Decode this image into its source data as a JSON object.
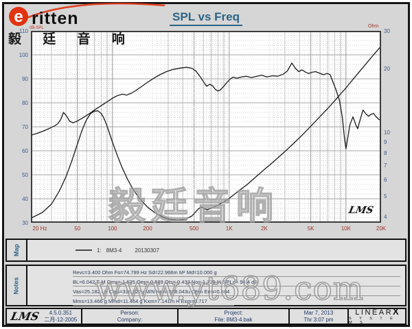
{
  "header": {
    "logo_word": "ritten",
    "logo_cn": "毅 廷 音 响",
    "title": "SPL vs Freq"
  },
  "chart_data": {
    "type": "line",
    "title": "SPL vs Freq",
    "grid": true,
    "x_axis": {
      "unit": "Hz",
      "scale": "log",
      "min": 20,
      "max": 20000,
      "ticks": [
        20,
        50,
        100,
        200,
        500,
        1000,
        2000,
        5000,
        10000,
        20000
      ],
      "tick_labels": [
        "20 Hz",
        "50",
        "100",
        "200",
        "500",
        "1K",
        "2K",
        "5K",
        "10K",
        "20K"
      ]
    },
    "y_axis_left": {
      "label": "dB-SPL",
      "scale": "linear",
      "min": 30,
      "max": 110,
      "ticks": [
        110,
        100,
        90,
        80,
        70,
        60,
        50,
        40,
        30
      ]
    },
    "y_axis_right": {
      "label": "Ohm",
      "scale": "log",
      "min": 3.76,
      "max": 30.1,
      "ticks": [
        30,
        20,
        10,
        9,
        8,
        7,
        6,
        5,
        4
      ]
    },
    "series": [
      {
        "name": "SPL (dB-SPL, left axis)",
        "axis": "left",
        "color": "#1a1a1a",
        "points": [
          [
            20,
            66.5
          ],
          [
            23,
            67.4
          ],
          [
            26,
            68.4
          ],
          [
            29,
            69.4
          ],
          [
            32,
            70.4
          ],
          [
            34,
            71.3
          ],
          [
            36,
            73
          ],
          [
            38,
            76
          ],
          [
            40,
            74.8
          ],
          [
            43,
            72.3
          ],
          [
            46,
            71.7
          ],
          [
            50,
            72.4
          ],
          [
            56,
            73.8
          ],
          [
            63,
            75.4
          ],
          [
            71,
            77.2
          ],
          [
            80,
            78.8
          ],
          [
            90,
            80.4
          ],
          [
            100,
            81.9
          ],
          [
            110,
            83
          ],
          [
            122,
            83.6
          ],
          [
            132,
            83.2
          ],
          [
            145,
            84
          ],
          [
            160,
            85.3
          ],
          [
            180,
            87
          ],
          [
            200,
            88.6
          ],
          [
            225,
            90.2
          ],
          [
            255,
            91.7
          ],
          [
            290,
            93
          ],
          [
            330,
            93.9
          ],
          [
            380,
            94.5
          ],
          [
            430,
            94.8
          ],
          [
            480,
            94.4
          ],
          [
            520,
            93.2
          ],
          [
            560,
            91.1
          ],
          [
            600,
            88.9
          ],
          [
            640,
            86.9
          ],
          [
            680,
            87.7
          ],
          [
            720,
            87.1
          ],
          [
            760,
            85.6
          ],
          [
            800,
            84.9
          ],
          [
            840,
            85.4
          ],
          [
            900,
            86.9
          ],
          [
            960,
            88.6
          ],
          [
            1020,
            89.9
          ],
          [
            1080,
            90.7
          ],
          [
            1160,
            90.2
          ],
          [
            1260,
            90.7
          ],
          [
            1400,
            91.1
          ],
          [
            1550,
            90.5
          ],
          [
            1700,
            91
          ],
          [
            1900,
            91.5
          ],
          [
            2100,
            90.8
          ],
          [
            2350,
            91.3
          ],
          [
            2600,
            91.1
          ],
          [
            2900,
            91.9
          ],
          [
            3150,
            93.3
          ],
          [
            3440,
            96.6
          ],
          [
            3700,
            94.3
          ],
          [
            3950,
            93
          ],
          [
            4200,
            93.7
          ],
          [
            4500,
            92.8
          ],
          [
            4800,
            92.2
          ],
          [
            5100,
            92.7
          ],
          [
            5500,
            93
          ],
          [
            5900,
            92.4
          ],
          [
            6400,
            91.7
          ],
          [
            6900,
            92.2
          ],
          [
            7300,
            91.8
          ],
          [
            7700,
            89
          ],
          [
            8200,
            85.5
          ],
          [
            8800,
            81
          ],
          [
            9300,
            74
          ],
          [
            9700,
            65.5
          ],
          [
            10000,
            60.8
          ],
          [
            10400,
            65.8
          ],
          [
            10800,
            70.8
          ],
          [
            11500,
            74.2
          ],
          [
            12100,
            71
          ],
          [
            12600,
            69.2
          ],
          [
            13300,
            73.4
          ],
          [
            14000,
            77
          ],
          [
            14800,
            75.4
          ],
          [
            15600,
            74.4
          ],
          [
            16400,
            75.2
          ],
          [
            17200,
            75.6
          ],
          [
            18000,
            74.4
          ],
          [
            19000,
            73.2
          ],
          [
            20000,
            72.6
          ]
        ]
      },
      {
        "name": "Impedance (Ohm, right axis)",
        "axis": "right",
        "color": "#1a1a1a",
        "points": [
          [
            20,
            3.95
          ],
          [
            25,
            4.2
          ],
          [
            30,
            4.6
          ],
          [
            35,
            5.3
          ],
          [
            40,
            6.2
          ],
          [
            45,
            7.4
          ],
          [
            50,
            8.8
          ],
          [
            55,
            10.3
          ],
          [
            60,
            11.5
          ],
          [
            65,
            12.3
          ],
          [
            70,
            12.6
          ],
          [
            75,
            12.65
          ],
          [
            80,
            12.3
          ],
          [
            85,
            11.6
          ],
          [
            90,
            10.7
          ],
          [
            100,
            9.0
          ],
          [
            110,
            7.8
          ],
          [
            120,
            6.9
          ],
          [
            135,
            6.0
          ],
          [
            150,
            5.4
          ],
          [
            170,
            4.9
          ],
          [
            200,
            4.45
          ],
          [
            230,
            4.2
          ],
          [
            270,
            4.0
          ],
          [
            310,
            3.9
          ],
          [
            360,
            3.87
          ],
          [
            420,
            3.9
          ],
          [
            480,
            4.05
          ],
          [
            540,
            4.35
          ],
          [
            576,
            4.47
          ],
          [
            610,
            4.38
          ],
          [
            650,
            4.33
          ],
          [
            700,
            4.4
          ],
          [
            800,
            4.55
          ],
          [
            900,
            4.72
          ],
          [
            1000,
            4.9
          ],
          [
            1200,
            5.3
          ],
          [
            1400,
            5.65
          ],
          [
            1700,
            6.2
          ],
          [
            2000,
            6.7
          ],
          [
            2400,
            7.3
          ],
          [
            2900,
            8.0
          ],
          [
            3500,
            8.8
          ],
          [
            4200,
            9.7
          ],
          [
            5000,
            10.7
          ],
          [
            6000,
            11.9
          ],
          [
            7000,
            13.0
          ],
          [
            8000,
            14.1
          ],
          [
            9000,
            15.2
          ],
          [
            10000,
            16.2
          ],
          [
            11500,
            17.8
          ],
          [
            13000,
            19.3
          ],
          [
            15000,
            21.2
          ],
          [
            17000,
            23.0
          ],
          [
            19000,
            24.7
          ],
          [
            20000,
            25.5
          ]
        ]
      }
    ]
  },
  "plot_logo": "LMS",
  "map_panel": {
    "label": "Map",
    "legend_index": "1:",
    "legend_name": "8M3-4",
    "legend_date": "20130307"
  },
  "notes_panel": {
    "label": "Notes",
    "lines": [
      "Revc=3.400 Ohm  Fo=74.799 Hz  Sd=22.966m M²  Md=10.000 g",
      "BL=6.042 T·M  Qms= 1.635  Qes= 0.589  Qts= 0.433  No= 1.729 %  SPLo= 94.4 dB",
      "Vas=25.182 Ltr  Cms=336.222u M/N  Krm=578.043u Ohm  Erm=0.884",
      "Mms=13.466 g  Mmd=11.464 g  Kxm=7.141m H  Exm=0.717"
    ]
  },
  "watermarks": {
    "chart_cn": "毅廷音响",
    "site": "www.yt689.com"
  },
  "footer": {
    "lms_logo": "LMS",
    "version": "4.5.0.351",
    "version_date": "二月-12-2005",
    "person_label": "Person:",
    "company_label": "Company:",
    "project_label": "Project:",
    "file_label": "File: 8M3-4.bak",
    "date": "Mar 7, 2013",
    "time": "Thr 3:07 pm",
    "brand_line1_a": "LINEAR",
    "brand_line1_b": "X",
    "brand_line2": "S Y S T E M S"
  },
  "colors": {
    "title": "#2a6386",
    "tick_blue": "#3d5a8a",
    "freq_red": "#a03328",
    "curve": "#1a1a1a",
    "grid_major": "#a6a6a6",
    "grid_minor": "#d2d2d2",
    "logo_red": "#e2330f",
    "panel_bg": "#e3e3e3",
    "window_bg": "#d6d6d6"
  }
}
